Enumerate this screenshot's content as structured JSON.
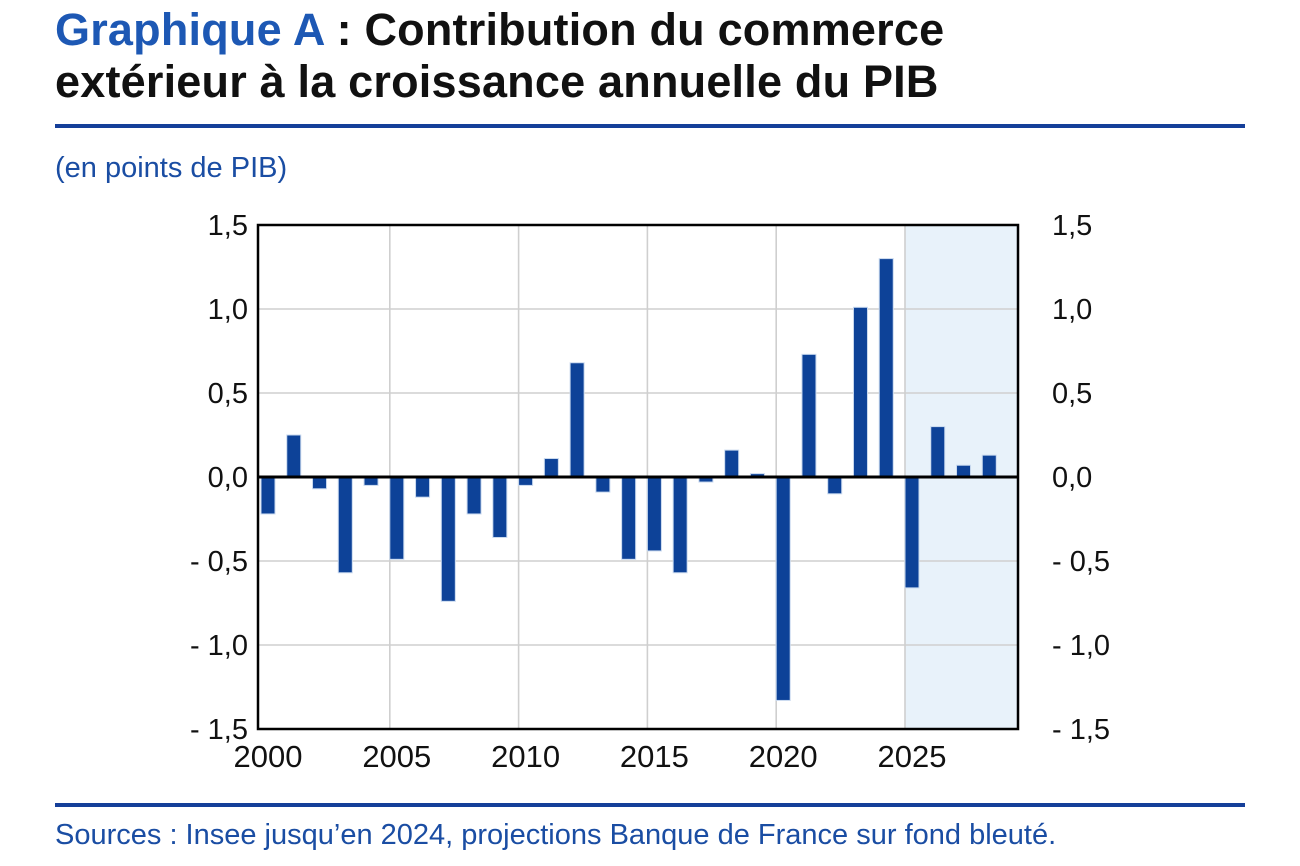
{
  "header": {
    "title_prefix": "Graphique A",
    "title_line1_rest": " : Contribution du commerce",
    "title_line2": "extérieur à la croissance annuelle du PIB"
  },
  "subtitle": "(en points de PIB)",
  "footer": {
    "sources": "Sources : Insee jusqu’en 2024, projections Banque de France sur fond bleuté."
  },
  "colors": {
    "accent_blue": "#1d58b4",
    "text_blue": "#1a4da3",
    "rule_blue": "#153f99",
    "bar_blue": "#0d4298",
    "bar_border": "#c9d9ef",
    "projection_bg": "#e8f2fa",
    "grid_gray": "#cfcfcf",
    "axis_black": "#000000",
    "text_black": "#111111"
  },
  "chart_data": {
    "type": "bar",
    "title": "Contribution du commerce extérieur à la croissance annuelle du PIB",
    "unit_label": "(en points de PIB)",
    "xlabel": "",
    "ylabel": "points de PIB",
    "years": [
      2000,
      2001,
      2002,
      2003,
      2004,
      2005,
      2006,
      2007,
      2008,
      2009,
      2010,
      2011,
      2012,
      2013,
      2014,
      2015,
      2016,
      2017,
      2018,
      2019,
      2020,
      2021,
      2022,
      2023,
      2024,
      2025,
      2026,
      2027,
      2028
    ],
    "values": [
      -0.22,
      0.25,
      -0.07,
      -0.57,
      -0.05,
      -0.49,
      -0.12,
      -0.74,
      -0.22,
      -0.36,
      -0.05,
      0.11,
      0.68,
      -0.09,
      -0.49,
      -0.44,
      -0.57,
      -0.03,
      0.16,
      0.02,
      -1.33,
      0.73,
      -0.1,
      1.01,
      1.3,
      -0.66,
      0.3,
      0.07,
      0.13
    ],
    "ylim": [
      -1.5,
      1.5
    ],
    "ytick_step": 0.5,
    "y_ticks": [
      {
        "value": 1.5,
        "label": "1,5"
      },
      {
        "value": 1.0,
        "label": "1,0"
      },
      {
        "value": 0.5,
        "label": "0,5"
      },
      {
        "value": 0.0,
        "label": "0,0"
      },
      {
        "value": -0.5,
        "label": "- 0,5"
      },
      {
        "value": -1.0,
        "label": "- 1,0"
      },
      {
        "value": -1.5,
        "label": "- 1,5"
      }
    ],
    "x_ticks": [
      {
        "year": 2000,
        "label": "2000"
      },
      {
        "year": 2005,
        "label": "2005"
      },
      {
        "year": 2010,
        "label": "2010"
      },
      {
        "year": 2015,
        "label": "2015"
      },
      {
        "year": 2020,
        "label": "2020"
      },
      {
        "year": 2025,
        "label": "2025"
      }
    ],
    "projection_start_year": 2025,
    "grid": true,
    "legend": "none"
  }
}
